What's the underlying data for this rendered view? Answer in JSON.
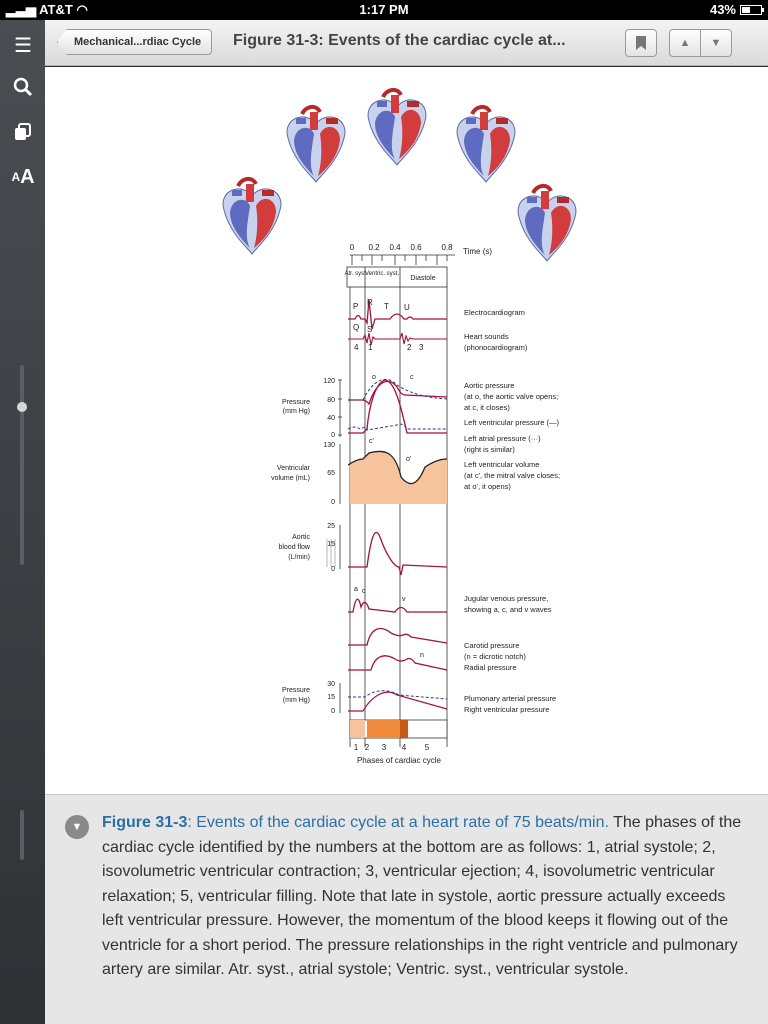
{
  "status": {
    "carrier": "AT&T",
    "time": "1:17 PM",
    "battery": "43%",
    "battery_level": 0.43
  },
  "nav": {
    "back_label": "Mechanical...rdiac Cycle",
    "title": "Figure 31-3: Events of the cardiac cycle at..."
  },
  "figure": {
    "time_axis": {
      "ticks": [
        "0",
        "0.2",
        "0.4",
        "0.6",
        "0.8"
      ],
      "label": "Time (s)"
    },
    "phase_headers": [
      "Atr. syst.",
      "Ventric. syst.",
      "Diastole"
    ],
    "ecg_waves": [
      "P",
      "R",
      "T",
      "Q",
      "S",
      "U"
    ],
    "sound_numbers": [
      "4",
      "1",
      "2",
      "3"
    ],
    "pressure_ticks": [
      "120",
      "80",
      "40",
      "0"
    ],
    "pressure_label": [
      "Pressure",
      "(mm Hg)"
    ],
    "volume_ticks": [
      "130",
      "65",
      "0"
    ],
    "volume_label": [
      "Ventricular",
      "volume (mL)"
    ],
    "flow_ticks": [
      "25",
      "15",
      "0"
    ],
    "flow_label": [
      "Aortic",
      "blood flow",
      "(L/min)"
    ],
    "pulm_ticks": [
      "30",
      "15",
      "0"
    ],
    "pulm_label": [
      "Pressure",
      "(mm Hg)"
    ],
    "point_labels": {
      "o": "o",
      "c": "c",
      "c_prime": "c'",
      "o_prime": "o'",
      "a": "a",
      "c2": "c",
      "v": "v",
      "n": "n"
    },
    "right_labels": {
      "ecg": "Electrocardiogram",
      "sounds_1": "Heart sounds",
      "sounds_2": "(phonocardiogram)",
      "aortic_1": "Aortic pressure",
      "aortic_2": "(at o, the aortic valve opens;",
      "aortic_3": "at c, it closes)",
      "lv": "Left ventricular pressure (—)",
      "la_1": "Left atrial pressure (···)",
      "la_2": "(right is similar)",
      "vol_1": "Left ventricular volume",
      "vol_2": "(at c', the mitral valve closes;",
      "vol_3": "at o', it opens)",
      "jug_1": "Jugular venous pressure,",
      "jug_2": "showing a, c, and v waves",
      "car_1": "Carotid pressure",
      "car_2": "(n = dicrotic notch)",
      "car_3": "Radial pressure",
      "pul_1": "Plumonary arterial pressure",
      "pul_2": "Right ventricular pressure"
    },
    "phase_numbers": [
      "1",
      "2",
      "3",
      "4",
      "5"
    ],
    "phase_label": "Phases of cardiac cycle"
  },
  "caption": {
    "ref": "Figure 31-3",
    "lead": ": Events of the cardiac cycle at a heart rate of 75 beats/min.",
    "body": " The phases of the cardiac cycle identified by the numbers at the bottom are as follows: 1, atrial systole; 2, isovolumetric ventricular contraction; 3, ventricular ejection; 4, isovolumetric ventricular relaxation; 5, ventricular filling. Note that late in systole, aortic pressure actually exceeds left ventricular pressure. However, the momentum of the blood keeps it flowing out of the ventricle for a short period. The pressure relationships in the right ventricle and pulmonary artery are similar. Atr. syst., atrial systole; Ventric. syst., ventricular systole."
  },
  "colors": {
    "curve": "#a3123a",
    "dash": "#2a3a8c",
    "volume_fill": "#f7c39c",
    "phase_fill": "#f08a3c",
    "link": "#2a6fa8"
  }
}
